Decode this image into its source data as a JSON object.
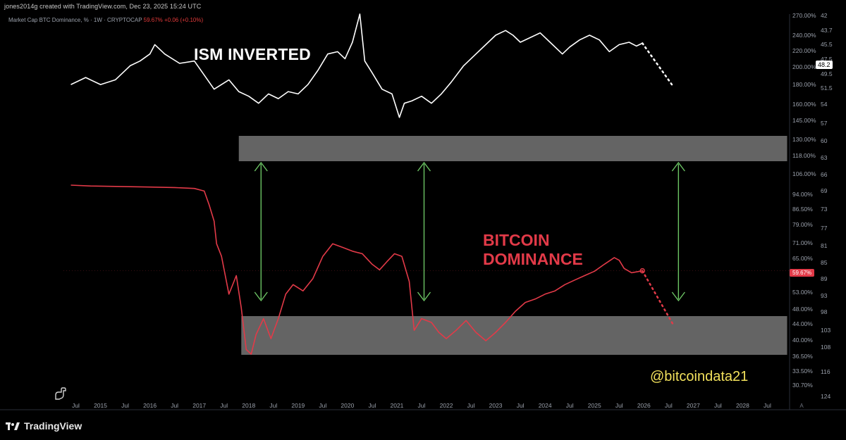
{
  "header": {
    "credit": "jones2014g created with TradingView.com, Dec 23, 2025 15:24 UTC",
    "legend_symbol": "Market Cap BTC Dominance, % · 1W · CRYPTOCAP",
    "legend_value": "59.67%",
    "legend_change": "+0.06 (+0.10%)"
  },
  "annotations": {
    "ism_title": "ISM INVERTED",
    "btc_title": "BITCOIN\nDOMINANCE",
    "handle": "@bitcoindata21"
  },
  "badges": {
    "dominance_last": "59.67%",
    "ism_last": "48.2"
  },
  "footer": {
    "brand": "TradingView"
  },
  "colors": {
    "background": "#000000",
    "ism_line": "#ffffff",
    "dominance_line": "#e23a48",
    "arrow": "#6cc464",
    "zone": "#8a8a8a",
    "handle": "#f2e15c"
  },
  "chart_data": {
    "type": "line",
    "x_axis": {
      "range": [
        2014.25,
        2029.0
      ],
      "tick_labels": [
        {
          "t": 2014.5,
          "label": "Jul"
        },
        {
          "t": 2015.0,
          "label": "2015"
        },
        {
          "t": 2015.5,
          "label": "Jul"
        },
        {
          "t": 2016.0,
          "label": "2016"
        },
        {
          "t": 2016.5,
          "label": "Jul"
        },
        {
          "t": 2017.0,
          "label": "2017"
        },
        {
          "t": 2017.5,
          "label": "Jul"
        },
        {
          "t": 2018.0,
          "label": "2018"
        },
        {
          "t": 2018.5,
          "label": "Jul"
        },
        {
          "t": 2019.0,
          "label": "2019"
        },
        {
          "t": 2019.5,
          "label": "Jul"
        },
        {
          "t": 2020.0,
          "label": "2020"
        },
        {
          "t": 2020.5,
          "label": "Jul"
        },
        {
          "t": 2021.0,
          "label": "2021"
        },
        {
          "t": 2021.5,
          "label": "Jul"
        },
        {
          "t": 2022.0,
          "label": "2022"
        },
        {
          "t": 2022.5,
          "label": "Jul"
        },
        {
          "t": 2023.0,
          "label": "2023"
        },
        {
          "t": 2023.5,
          "label": "Jul"
        },
        {
          "t": 2024.0,
          "label": "2024"
        },
        {
          "t": 2024.5,
          "label": "Jul"
        },
        {
          "t": 2025.0,
          "label": "2025"
        },
        {
          "t": 2025.5,
          "label": "Jul"
        },
        {
          "t": 2026.0,
          "label": "2026"
        },
        {
          "t": 2026.5,
          "label": "Jul"
        },
        {
          "t": 2027.0,
          "label": "2027"
        },
        {
          "t": 2027.5,
          "label": "Jul"
        },
        {
          "t": 2028.0,
          "label": "2028"
        },
        {
          "t": 2028.5,
          "label": "Jul"
        }
      ]
    },
    "y_axis_left_scale": {
      "scale": "log",
      "tick_labels": [
        "270.00%",
        "240.00%",
        "220.00%",
        "200.00%",
        "180.00%",
        "160.00%",
        "145.00%",
        "130.00%",
        "118.00%",
        "106.00%",
        "94.00%",
        "86.50%",
        "79.00%",
        "71.00%",
        "65.00%",
        "59.67%",
        "53.00%",
        "48.00%",
        "44.00%",
        "40.00%",
        "36.50%",
        "33.50%",
        "30.70%"
      ],
      "tick_values": [
        270,
        240,
        220,
        200,
        180,
        160,
        145,
        130,
        118,
        106,
        94,
        86.5,
        79,
        71,
        65,
        59.67,
        53,
        48,
        44,
        40,
        36.5,
        33.5,
        30.7
      ]
    },
    "y_axis_right_scale": {
      "scale": "inverted",
      "tick_labels": [
        "42",
        "43.7",
        "45.5",
        "47.5",
        "48.2",
        "49.5",
        "51.5",
        "54",
        "57",
        "60",
        "63",
        "66",
        "69",
        "73",
        "77",
        "81",
        "85",
        "89",
        "93",
        "98",
        "103",
        "108",
        "116",
        "124"
      ],
      "tick_values": [
        42,
        43.7,
        45.5,
        47.5,
        48.2,
        49.5,
        51.5,
        54,
        57,
        60,
        63,
        66,
        69,
        73,
        77,
        81,
        85,
        89,
        93,
        98,
        103,
        108,
        116,
        124
      ]
    },
    "series": [
      {
        "name": "Market Cap BTC Dominance, %",
        "color": "#e23a48",
        "points": [
          [
            2014.4,
            98.9
          ],
          [
            2014.8,
            98.4
          ],
          [
            2015.2,
            98.2
          ],
          [
            2015.6,
            98.0
          ],
          [
            2016.0,
            97.8
          ],
          [
            2016.5,
            97.5
          ],
          [
            2016.9,
            97.0
          ],
          [
            2017.1,
            95.5
          ],
          [
            2017.2,
            88.0
          ],
          [
            2017.3,
            80.0
          ],
          [
            2017.35,
            70.0
          ],
          [
            2017.45,
            65.0
          ],
          [
            2017.6,
            52.0
          ],
          [
            2017.75,
            58.0
          ],
          [
            2017.85,
            48.0
          ],
          [
            2017.95,
            37.5
          ],
          [
            2018.05,
            36.5
          ],
          [
            2018.15,
            41.0
          ],
          [
            2018.3,
            45.0
          ],
          [
            2018.45,
            40.0
          ],
          [
            2018.6,
            45.0
          ],
          [
            2018.75,
            52.0
          ],
          [
            2018.9,
            55.0
          ],
          [
            2019.1,
            53.0
          ],
          [
            2019.3,
            57.0
          ],
          [
            2019.5,
            65.0
          ],
          [
            2019.7,
            70.0
          ],
          [
            2019.9,
            68.5
          ],
          [
            2020.1,
            67.0
          ],
          [
            2020.3,
            66.0
          ],
          [
            2020.5,
            62.0
          ],
          [
            2020.65,
            60.0
          ],
          [
            2020.8,
            63.0
          ],
          [
            2020.95,
            66.0
          ],
          [
            2021.1,
            65.0
          ],
          [
            2021.25,
            56.0
          ],
          [
            2021.35,
            42.0
          ],
          [
            2021.5,
            45.0
          ],
          [
            2021.7,
            44.0
          ],
          [
            2021.85,
            41.5
          ],
          [
            2022.0,
            40.0
          ],
          [
            2022.2,
            42.0
          ],
          [
            2022.4,
            44.5
          ],
          [
            2022.6,
            41.5
          ],
          [
            2022.8,
            39.5
          ],
          [
            2023.0,
            41.5
          ],
          [
            2023.2,
            44.0
          ],
          [
            2023.4,
            47.0
          ],
          [
            2023.6,
            49.5
          ],
          [
            2023.8,
            50.5
          ],
          [
            2024.0,
            52.0
          ],
          [
            2024.2,
            53.0
          ],
          [
            2024.4,
            55.0
          ],
          [
            2024.6,
            56.5
          ],
          [
            2024.8,
            58.0
          ],
          [
            2025.0,
            59.5
          ],
          [
            2025.2,
            62.0
          ],
          [
            2025.4,
            64.5
          ],
          [
            2025.5,
            63.5
          ],
          [
            2025.6,
            60.5
          ],
          [
            2025.75,
            59.0
          ],
          [
            2025.97,
            59.67
          ]
        ],
        "projection": [
          [
            2025.97,
            59.67
          ],
          [
            2026.6,
            43.3
          ]
        ]
      },
      {
        "name": "ISM (inverted)",
        "color": "#ffffff",
        "points": [
          [
            2014.4,
            57.0
          ],
          [
            2014.7,
            55.5
          ],
          [
            2015.0,
            57.0
          ],
          [
            2015.3,
            56.0
          ],
          [
            2015.6,
            53.0
          ],
          [
            2015.8,
            52.0
          ],
          [
            2016.0,
            50.5
          ],
          [
            2016.1,
            48.5
          ],
          [
            2016.3,
            50.5
          ],
          [
            2016.6,
            52.5
          ],
          [
            2016.9,
            52.0
          ],
          [
            2017.1,
            55.0
          ],
          [
            2017.3,
            58.0
          ],
          [
            2017.6,
            56.0
          ],
          [
            2017.8,
            58.5
          ],
          [
            2018.0,
            59.5
          ],
          [
            2018.2,
            61.0
          ],
          [
            2018.4,
            59.0
          ],
          [
            2018.6,
            60.0
          ],
          [
            2018.8,
            58.5
          ],
          [
            2019.0,
            59.0
          ],
          [
            2019.2,
            57.0
          ],
          [
            2019.4,
            54.0
          ],
          [
            2019.6,
            50.5
          ],
          [
            2019.8,
            50.0
          ],
          [
            2019.95,
            51.5
          ],
          [
            2020.1,
            48.0
          ],
          [
            2020.25,
            42.0
          ],
          [
            2020.35,
            52.0
          ],
          [
            2020.5,
            54.5
          ],
          [
            2020.7,
            58.0
          ],
          [
            2020.9,
            59.0
          ],
          [
            2021.05,
            64.0
          ],
          [
            2021.15,
            61.0
          ],
          [
            2021.3,
            60.5
          ],
          [
            2021.5,
            59.5
          ],
          [
            2021.7,
            61.0
          ],
          [
            2021.9,
            59.0
          ],
          [
            2022.1,
            56.5
          ],
          [
            2022.35,
            53.0
          ],
          [
            2022.6,
            50.5
          ],
          [
            2022.85,
            48.0
          ],
          [
            2023.0,
            46.5
          ],
          [
            2023.2,
            45.5
          ],
          [
            2023.35,
            46.5
          ],
          [
            2023.5,
            48.0
          ],
          [
            2023.7,
            47.0
          ],
          [
            2023.9,
            46.0
          ],
          [
            2024.1,
            48.0
          ],
          [
            2024.35,
            50.5
          ],
          [
            2024.5,
            49.0
          ],
          [
            2024.7,
            47.5
          ],
          [
            2024.9,
            46.5
          ],
          [
            2025.1,
            47.5
          ],
          [
            2025.3,
            50.0
          ],
          [
            2025.5,
            48.5
          ],
          [
            2025.7,
            48.0
          ],
          [
            2025.85,
            48.8
          ],
          [
            2025.97,
            48.2
          ]
        ],
        "projection": [
          [
            2025.97,
            48.2
          ],
          [
            2026.6,
            57.5
          ]
        ]
      }
    ],
    "zones": [
      {
        "name": "upper-zone",
        "t_start": 2017.8,
        "t_end": 2028.9
      },
      {
        "name": "lower-zone",
        "t_start": 2017.85,
        "t_end": 2028.9
      }
    ],
    "arrows": [
      {
        "t": 2018.25
      },
      {
        "t": 2021.55
      },
      {
        "t": 2026.7
      }
    ]
  }
}
